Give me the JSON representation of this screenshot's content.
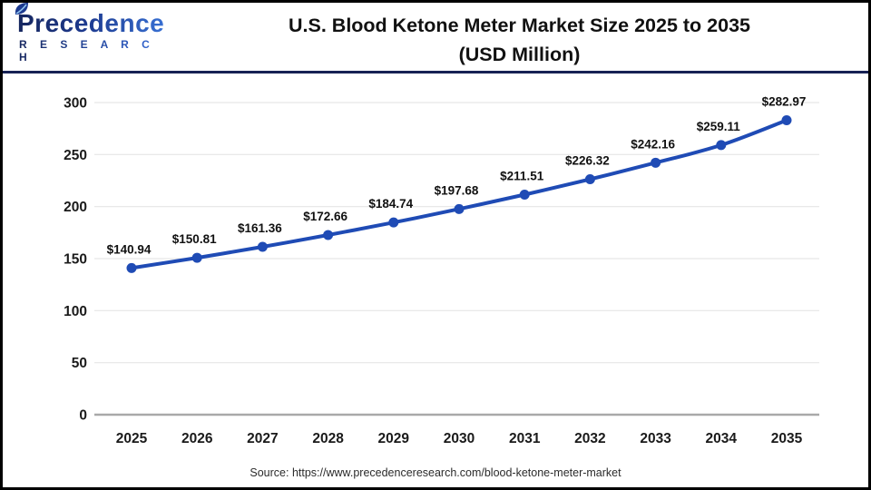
{
  "header": {
    "logo": {
      "brand_top": "Precedence",
      "brand_bottom": "R E S E A R C H"
    },
    "title_line1": "U.S. Blood Ketone Meter Market Size 2025 to 2035",
    "title_line2": "(USD Million)"
  },
  "chart_data": {
    "type": "line",
    "title": "U.S. Blood Ketone Meter Market Size 2025 to 2035 (USD Million)",
    "categories": [
      "2025",
      "2026",
      "2027",
      "2028",
      "2029",
      "2030",
      "2031",
      "2032",
      "2033",
      "2034",
      "2035"
    ],
    "values": [
      140.94,
      150.81,
      161.36,
      172.66,
      184.74,
      197.68,
      211.51,
      226.32,
      242.16,
      259.11,
      282.97
    ],
    "data_labels": [
      "$140.94",
      "$150.81",
      "$161.36",
      "$172.66",
      "$184.74",
      "$197.68",
      "$211.51",
      "$226.32",
      "$242.16",
      "$259.11",
      "$282.97"
    ],
    "xlabel": "",
    "ylabel": "",
    "ylim": [
      0,
      300
    ],
    "y_ticks": [
      0,
      50,
      100,
      150,
      200,
      250,
      300
    ],
    "grid": true,
    "legend": "none",
    "line_color": "#1f4bb5",
    "marker": "circle",
    "gridline_color": "#e6e6e6",
    "axis_line_color": "#a9a9a9",
    "tick_label_color": "#1a1a1a",
    "data_label_color": "#111111"
  },
  "footer": {
    "source": "Source: https://www.precedenceresearch.com/blood-ketone-meter-market"
  }
}
